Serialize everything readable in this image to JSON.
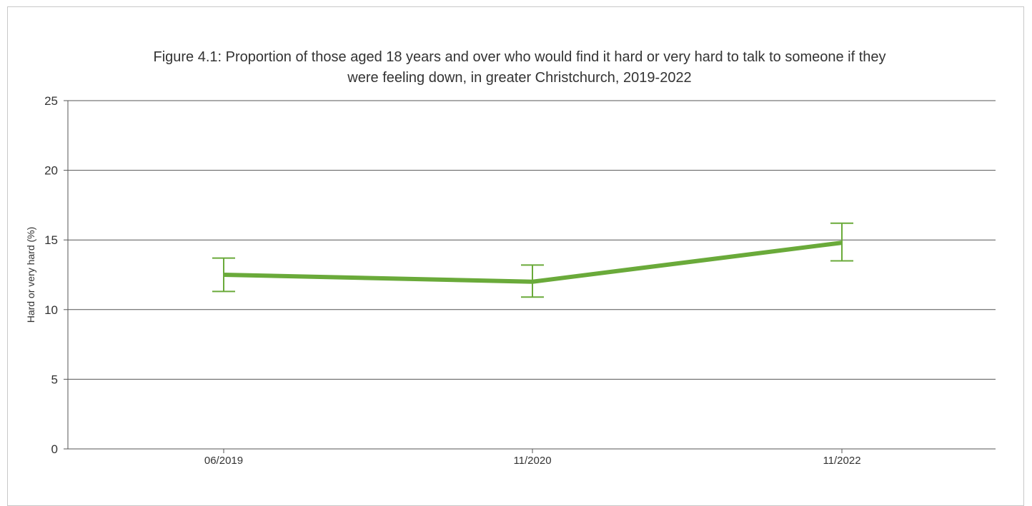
{
  "chart_data": {
    "type": "line",
    "title_lines": [
      "Figure 4.1: Proportion of those aged 18 years and over who would find it hard or very hard to talk to someone if they",
      "were feeling down, in greater Christchurch, 2019-2022"
    ],
    "xlabel": "",
    "ylabel": "Hard or very hard (%)",
    "categories": [
      "06/2019",
      "11/2020",
      "11/2022"
    ],
    "series": [
      {
        "values": [
          12.5,
          12.0,
          14.8
        ],
        "error_low": [
          11.3,
          10.9,
          13.5
        ],
        "error_high": [
          13.7,
          13.2,
          16.2
        ],
        "color": "#6aaa3a"
      }
    ],
    "ylim": [
      0,
      25
    ],
    "yticks": [
      0,
      5,
      10,
      15,
      20,
      25
    ],
    "grid": true,
    "legend": "none"
  }
}
